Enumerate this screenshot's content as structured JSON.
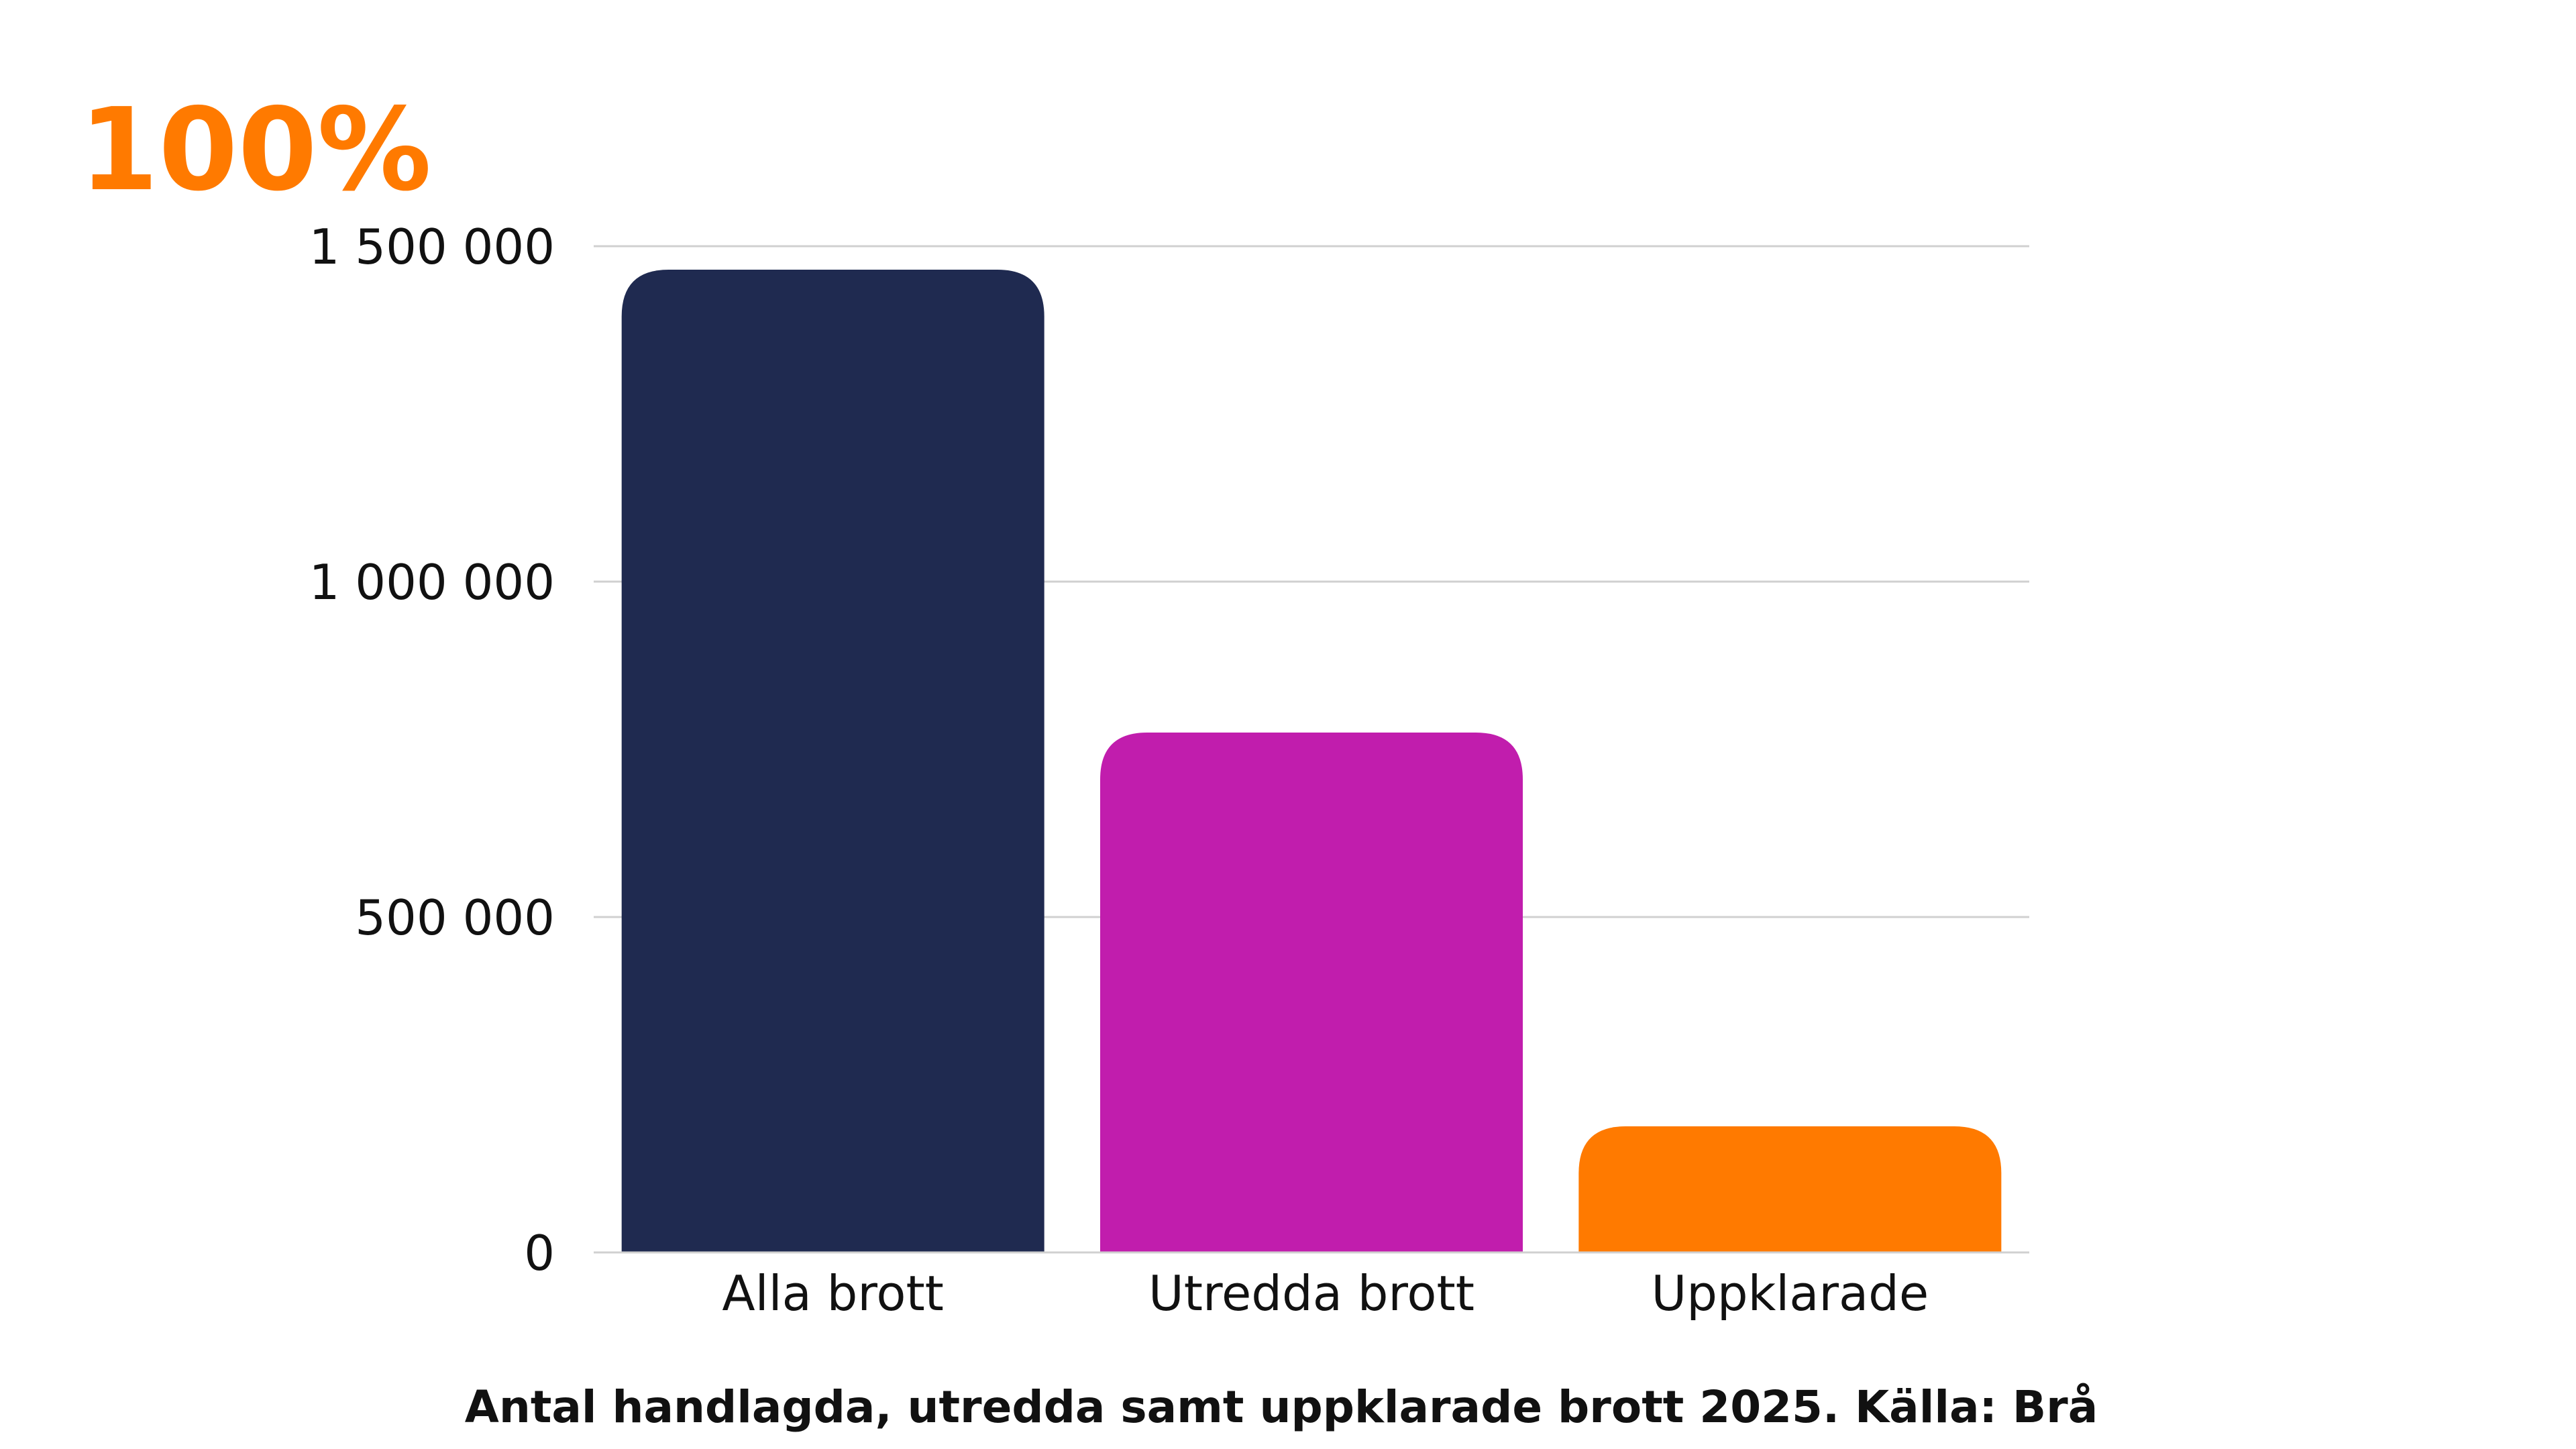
{
  "logo": {
    "text": "100%",
    "color": "#FF7A00"
  },
  "chart_data": {
    "type": "bar",
    "categories": [
      "Alla brott",
      "Utredda brott",
      "Uppklarade"
    ],
    "values": [
      1465000,
      775000,
      188000
    ],
    "colors": [
      "#1F2A50",
      "#C11DAD",
      "#FF7A00"
    ],
    "ylim": [
      0,
      1500000
    ],
    "yticks": [
      0,
      500000,
      1000000,
      1500000
    ],
    "ytick_labels": [
      "0",
      "500 000",
      "1 000 000",
      "1 500 000"
    ],
    "grid": true,
    "caption": "Antal handlagda, utredda samt uppklarade brott 2025. Källa: Brå"
  }
}
